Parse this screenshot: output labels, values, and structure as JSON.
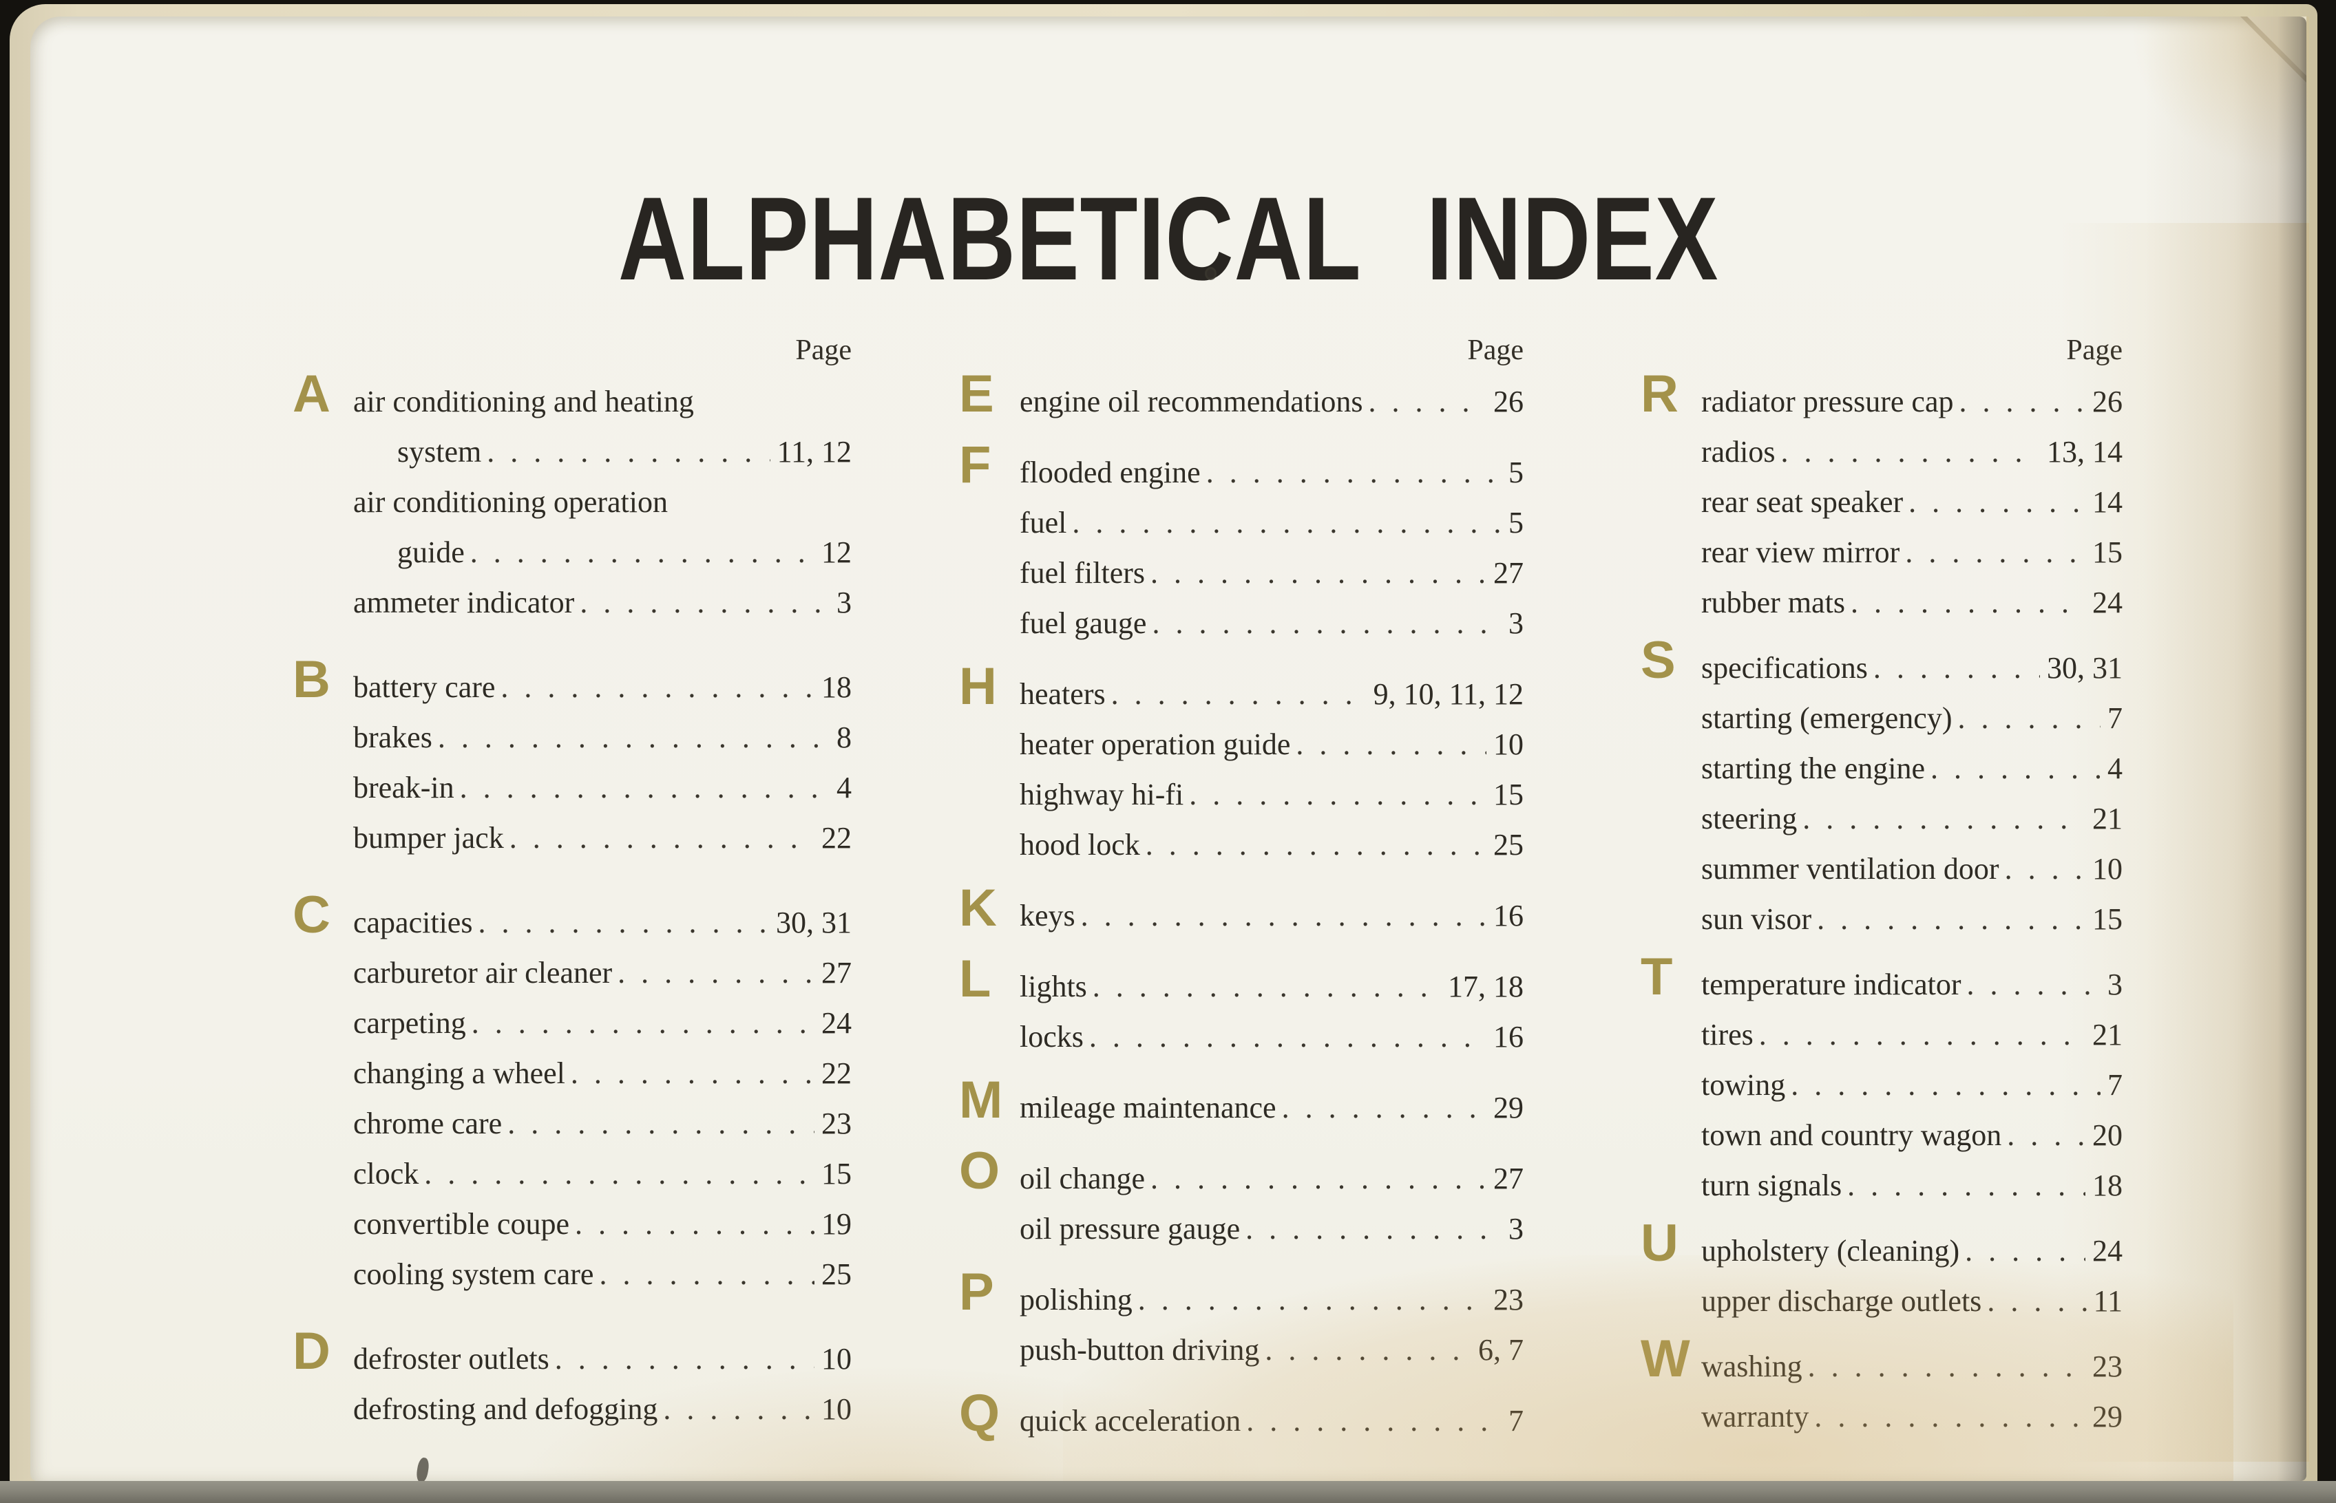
{
  "page_title": "ALPHABETICAL INDEX",
  "colors": {
    "paper": "#f3f2ea",
    "ink": "#2e2b24",
    "section_letter_gold": "#a3924a",
    "scanner_bed_gray": "#8a887d"
  },
  "columns": [
    {
      "page_header": "Page",
      "rows": [
        {
          "letter": "A",
          "text": "air conditioning and heating",
          "pages": ""
        },
        {
          "indent": true,
          "text": "system",
          "pages": "11, 12"
        },
        {
          "text": "air conditioning operation",
          "pages": ""
        },
        {
          "indent": true,
          "text": "guide",
          "pages": "12"
        },
        {
          "text": "ammeter indicator",
          "pages": "3"
        },
        {
          "letter": "B",
          "text": "battery care",
          "pages": "18"
        },
        {
          "text": "brakes",
          "pages": "8"
        },
        {
          "text": "break-in",
          "pages": "4"
        },
        {
          "text": "bumper jack",
          "pages": "22"
        },
        {
          "letter": "C",
          "text": "capacities",
          "pages": "30, 31"
        },
        {
          "text": "carburetor air cleaner",
          "pages": "27"
        },
        {
          "text": "carpeting",
          "pages": "24"
        },
        {
          "text": "changing a wheel",
          "pages": "22"
        },
        {
          "text": "chrome care",
          "pages": "23"
        },
        {
          "text": "clock",
          "pages": "15"
        },
        {
          "text": "convertible coupe",
          "pages": "19"
        },
        {
          "text": "cooling system care",
          "pages": "25"
        },
        {
          "letter": "D",
          "text": "defroster outlets",
          "pages": "10"
        },
        {
          "text": "defrosting and defogging",
          "pages": "10"
        }
      ]
    },
    {
      "page_header": "Page",
      "rows": [
        {
          "letter": "E",
          "text": "engine oil recommendations",
          "pages": "26"
        },
        {
          "letter": "F",
          "text": "flooded engine",
          "pages": "5"
        },
        {
          "text": "fuel",
          "pages": "5"
        },
        {
          "text": "fuel filters",
          "pages": "27"
        },
        {
          "text": "fuel gauge",
          "pages": "3"
        },
        {
          "letter": "H",
          "text": "heaters",
          "pages": "9, 10, 11, 12"
        },
        {
          "text": "heater operation guide",
          "pages": "10"
        },
        {
          "text": "highway hi-fi",
          "pages": "15"
        },
        {
          "text": "hood lock",
          "pages": "25"
        },
        {
          "letter": "K",
          "text": "keys",
          "pages": "16"
        },
        {
          "letter": "L",
          "text": "lights",
          "pages": "17, 18"
        },
        {
          "text": "locks",
          "pages": "16"
        },
        {
          "letter": "M",
          "text": "mileage maintenance",
          "pages": "29"
        },
        {
          "letter": "O",
          "text": "oil change",
          "pages": "27"
        },
        {
          "text": "oil pressure gauge",
          "pages": "3"
        },
        {
          "letter": "P",
          "text": "polishing",
          "pages": "23"
        },
        {
          "text": "push-button driving",
          "pages": "6, 7"
        },
        {
          "letter": "Q",
          "text": "quick acceleration",
          "pages": "7"
        }
      ]
    },
    {
      "page_header": "Page",
      "rows": [
        {
          "letter": "R",
          "text": "radiator pressure cap",
          "pages": "26"
        },
        {
          "text": "radios",
          "pages": "13, 14"
        },
        {
          "text": "rear seat speaker",
          "pages": "14"
        },
        {
          "text": "rear view mirror",
          "pages": "15"
        },
        {
          "text": "rubber mats",
          "pages": "24"
        },
        {
          "letter": "S",
          "text": "specifications",
          "pages": "30, 31"
        },
        {
          "text": "starting (emergency)",
          "pages": "7"
        },
        {
          "text": "starting the engine",
          "pages": "4"
        },
        {
          "text": "steering",
          "pages": "21"
        },
        {
          "text": "summer ventilation door",
          "pages": "10"
        },
        {
          "text": "sun visor",
          "pages": "15"
        },
        {
          "letter": "T",
          "text": "temperature indicator",
          "pages": "3"
        },
        {
          "text": "tires",
          "pages": "21"
        },
        {
          "text": "towing",
          "pages": "7"
        },
        {
          "text": "town and country wagon",
          "pages": "20"
        },
        {
          "text": "turn signals",
          "pages": "18"
        },
        {
          "letter": "U",
          "text": "upholstery (cleaning)",
          "pages": "24"
        },
        {
          "text": "upper discharge outlets",
          "pages": "11"
        },
        {
          "letter": "W",
          "text": "washing",
          "pages": "23"
        },
        {
          "text": "warranty",
          "pages": "29"
        }
      ]
    }
  ]
}
